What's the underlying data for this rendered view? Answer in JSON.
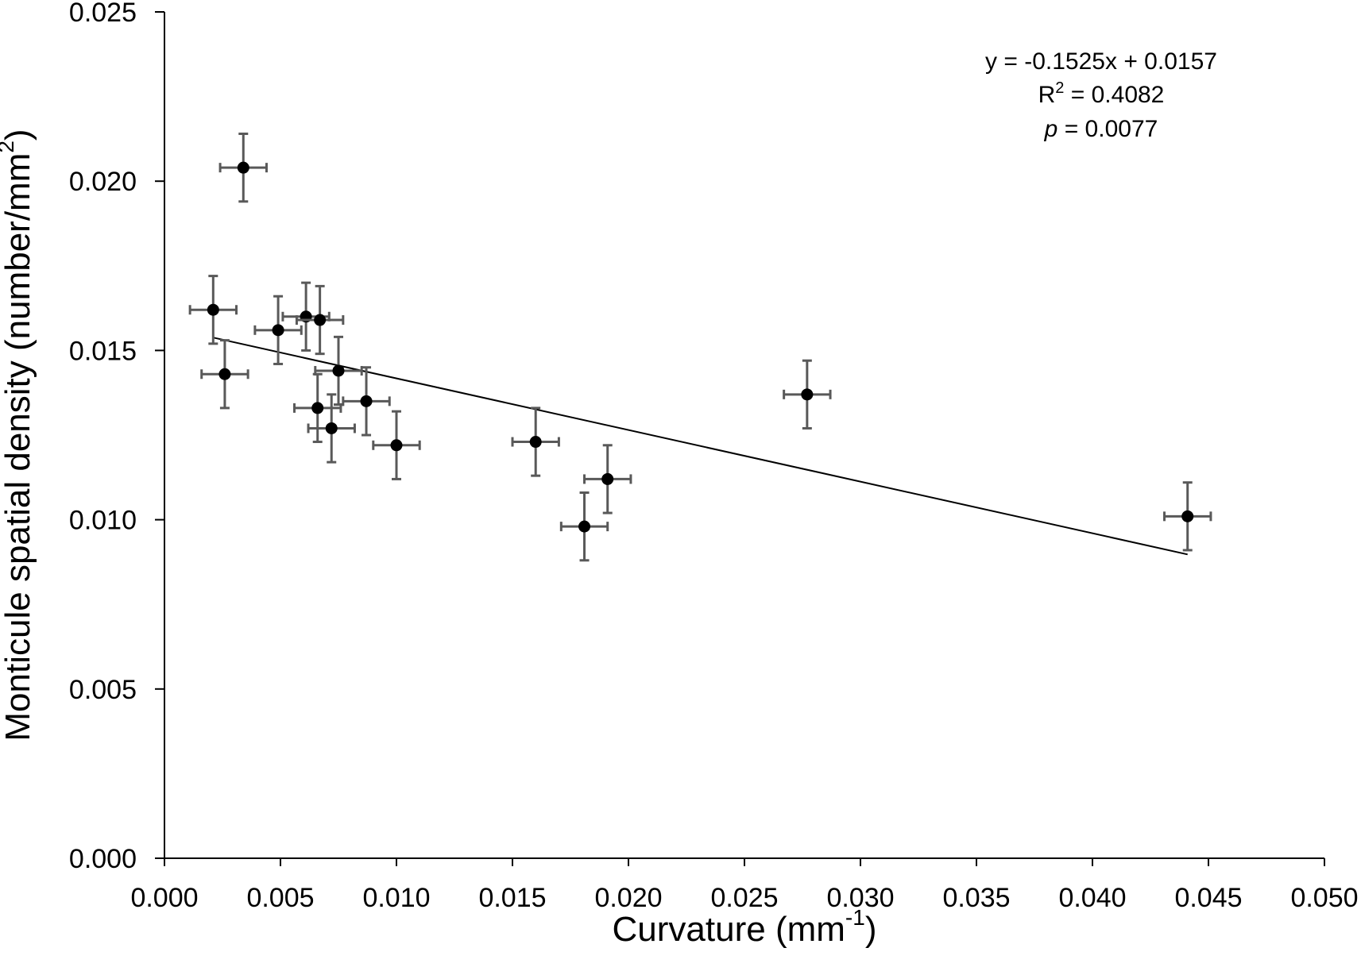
{
  "chart_data": {
    "type": "scatter",
    "xlabel": "Curvature (mm",
    "xlabel_sup": "-1",
    "xlabel_end": ")",
    "ylabel": "Monticule spatial density (number/mm",
    "ylabel_sup": "2",
    "ylabel_end": ")",
    "xlim": [
      0.0,
      0.05
    ],
    "ylim": [
      0.0,
      0.025
    ],
    "x_ticks": [
      "0.000",
      "0.005",
      "0.010",
      "0.015",
      "0.020",
      "0.025",
      "0.030",
      "0.035",
      "0.040",
      "0.045",
      "0.050"
    ],
    "y_ticks": [
      "0.000",
      "0.005",
      "0.010",
      "0.015",
      "0.020",
      "0.025"
    ],
    "grid": false,
    "marker_color": "#000000",
    "errorbar_color": "#595959",
    "points": [
      {
        "x": 0.0021,
        "y": 0.0162,
        "xerr": 0.001,
        "yerr": 0.001
      },
      {
        "x": 0.0026,
        "y": 0.0143,
        "xerr": 0.001,
        "yerr": 0.001
      },
      {
        "x": 0.0034,
        "y": 0.0204,
        "xerr": 0.001,
        "yerr": 0.001
      },
      {
        "x": 0.0049,
        "y": 0.0156,
        "xerr": 0.001,
        "yerr": 0.001
      },
      {
        "x": 0.0061,
        "y": 0.016,
        "xerr": 0.001,
        "yerr": 0.001
      },
      {
        "x": 0.0066,
        "y": 0.0133,
        "xerr": 0.001,
        "yerr": 0.001
      },
      {
        "x": 0.0067,
        "y": 0.0159,
        "xerr": 0.001,
        "yerr": 0.001
      },
      {
        "x": 0.0072,
        "y": 0.0127,
        "xerr": 0.001,
        "yerr": 0.001
      },
      {
        "x": 0.0075,
        "y": 0.0144,
        "xerr": 0.001,
        "yerr": 0.001
      },
      {
        "x": 0.0087,
        "y": 0.0135,
        "xerr": 0.001,
        "yerr": 0.001
      },
      {
        "x": 0.01,
        "y": 0.0122,
        "xerr": 0.001,
        "yerr": 0.001
      },
      {
        "x": 0.016,
        "y": 0.0123,
        "xerr": 0.001,
        "yerr": 0.001
      },
      {
        "x": 0.0181,
        "y": 0.0098,
        "xerr": 0.001,
        "yerr": 0.001
      },
      {
        "x": 0.0191,
        "y": 0.0112,
        "xerr": 0.001,
        "yerr": 0.001
      },
      {
        "x": 0.0277,
        "y": 0.0137,
        "xerr": 0.001,
        "yerr": 0.001
      },
      {
        "x": 0.0441,
        "y": 0.0101,
        "xerr": 0.001,
        "yerr": 0.001
      }
    ],
    "trendline": {
      "slope": -0.1525,
      "intercept": 0.0157,
      "x_range": [
        0.0021,
        0.0441
      ],
      "color": "#000000"
    },
    "annotations": {
      "equation": "y = -0.1525x + 0.0157",
      "r2_prefix": "R",
      "r2_sup": "2",
      "r2_value": " = 0.4082",
      "p_label": "p",
      "p_value": " = 0.0077"
    }
  }
}
